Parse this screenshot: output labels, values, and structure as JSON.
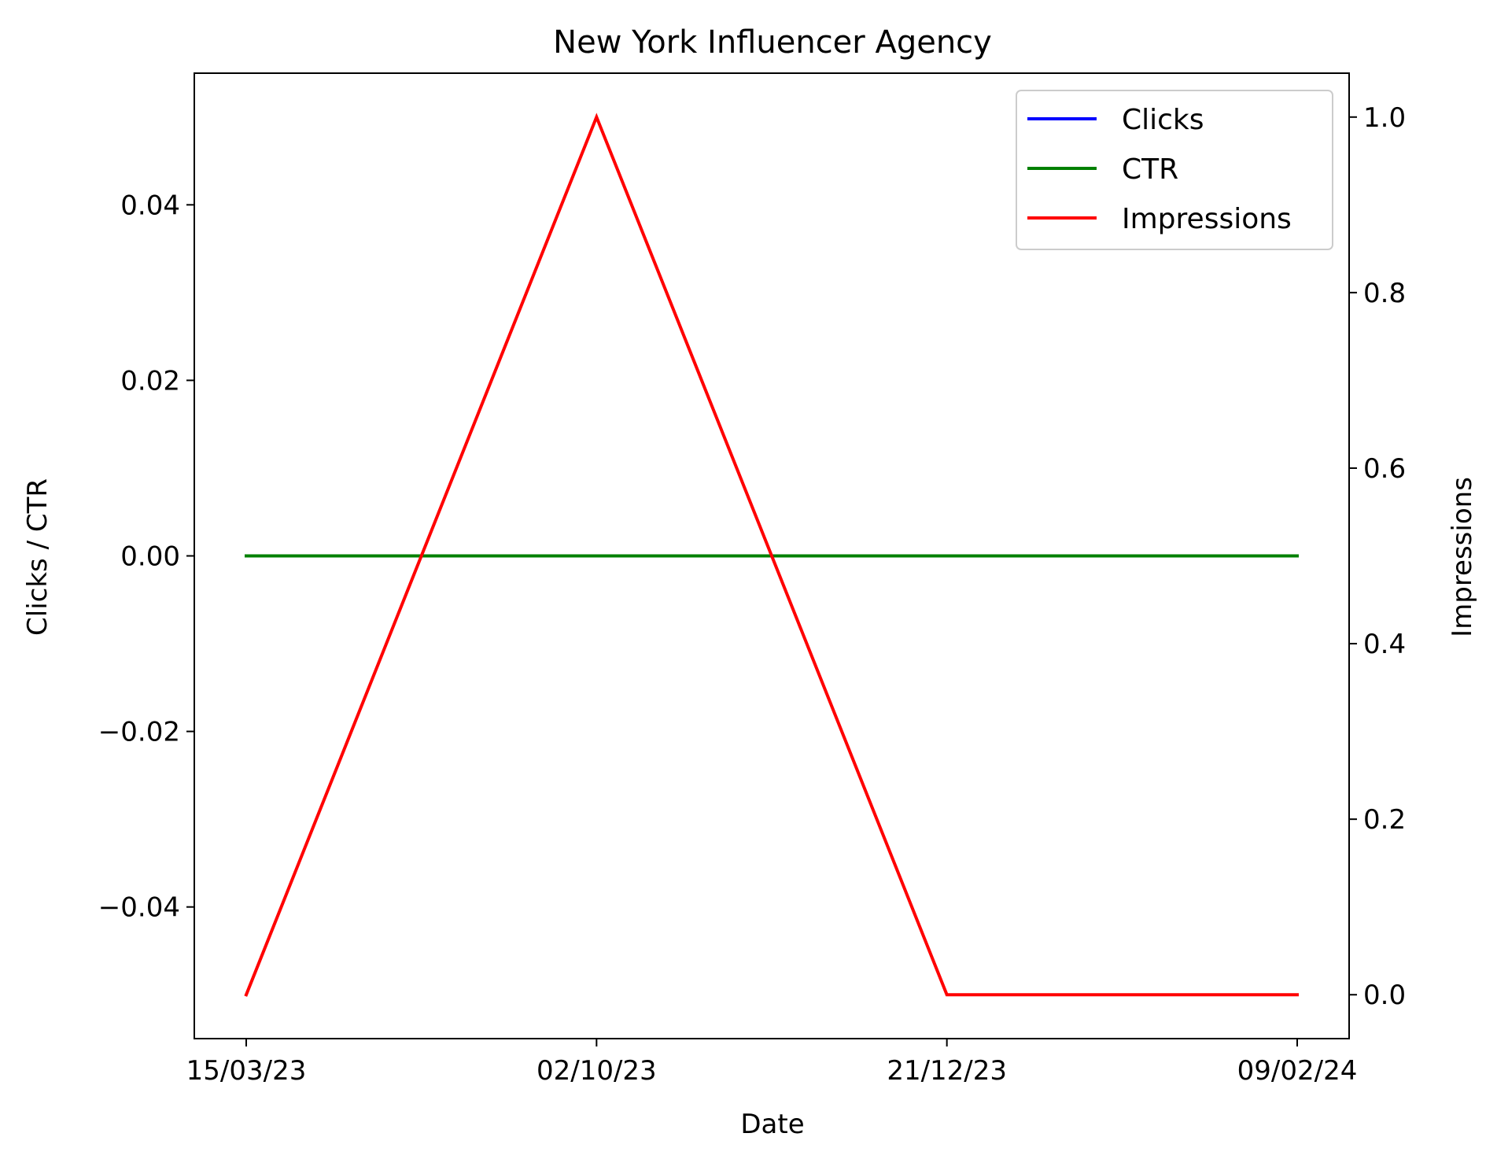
{
  "chart_data": {
    "type": "line",
    "title": "New York Influencer Agency",
    "xlabel": "Date",
    "ylabel_left": "Clicks / CTR",
    "ylabel_right": "Impressions",
    "categories": [
      "15/03/23",
      "02/10/23",
      "21/12/23",
      "09/02/24"
    ],
    "x_tick_labels": [
      "15/03/23",
      "02/10/23",
      "21/12/23",
      "09/02/24"
    ],
    "y_left_ticks": [
      -0.04,
      -0.02,
      0.0,
      0.02,
      0.04
    ],
    "y_left_tick_labels": [
      "−0.04",
      "−0.02",
      "0.00",
      "0.02",
      "0.04"
    ],
    "y_right_ticks": [
      0.0,
      0.2,
      0.4,
      0.6,
      0.8,
      1.0
    ],
    "y_right_tick_labels": [
      "0.0",
      "0.2",
      "0.4",
      "0.6",
      "0.8",
      "1.0"
    ],
    "ylim_left": [
      -0.055,
      0.055
    ],
    "ylim_right": [
      -0.05,
      1.05
    ],
    "grid": false,
    "legend_position": "top-right",
    "series": [
      {
        "name": "Clicks",
        "axis": "left",
        "color": "#0000ff",
        "values": [
          0,
          0,
          0,
          0
        ]
      },
      {
        "name": "CTR",
        "axis": "left",
        "color": "#008000",
        "values": [
          0,
          0,
          0,
          0
        ]
      },
      {
        "name": "Impressions",
        "axis": "right",
        "color": "#ff0000",
        "values": [
          0,
          1,
          0,
          0
        ]
      }
    ]
  }
}
